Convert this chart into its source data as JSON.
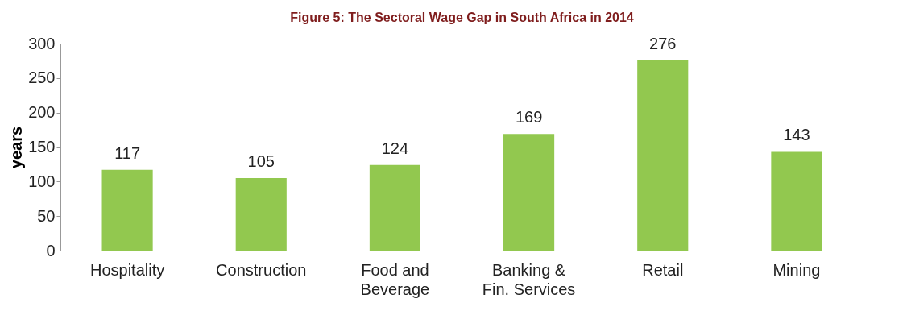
{
  "chart_data": {
    "type": "bar",
    "title": "Figure 5: The Sectoral Wage Gap in South Africa in 2014",
    "ylabel": "years",
    "categories": [
      "Hospitality",
      "Construction",
      "Food and Beverage",
      "Banking & Fin. Services",
      "Retail",
      "Mining"
    ],
    "values": [
      117,
      105,
      124,
      169,
      276,
      143
    ],
    "color": "#92c84f",
    "ylim": [
      0,
      300
    ],
    "yticks": [
      0,
      50,
      100,
      150,
      200,
      250,
      300
    ],
    "grid": false,
    "data_labels": true
  }
}
